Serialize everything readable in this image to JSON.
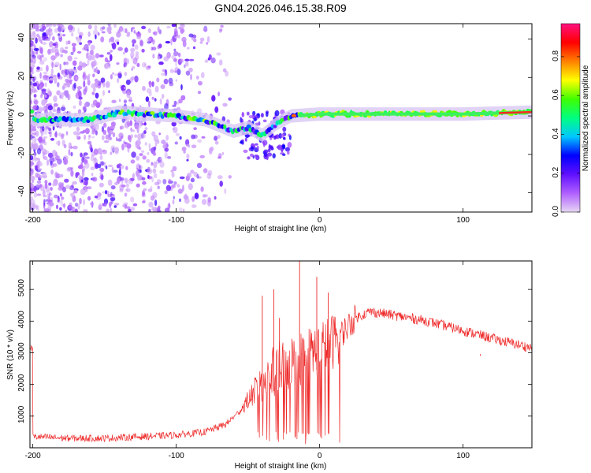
{
  "title": "GN04.2026.046.15.38.R09",
  "chart_data": [
    {
      "type": "heatmap",
      "name": "spectrogram",
      "xlabel": "Height of straight line (km)",
      "ylabel": "Frequency (Hz)",
      "xlim": [
        -202,
        148
      ],
      "ylim": [
        -50,
        48
      ],
      "xticks": [
        -200,
        -100,
        0,
        100
      ],
      "yticks": [
        -40,
        -20,
        0,
        20,
        40
      ],
      "colorbar": {
        "label": "Normalized spectral amplitude",
        "range": [
          0,
          0.97
        ],
        "ticks": [
          0.0,
          0.2,
          0.4,
          0.6,
          0.8
        ],
        "tick_labels": [
          "0.0",
          "0.2",
          "0.4",
          "0.6",
          "0.8"
        ],
        "colormap": [
          "#e6d6f3",
          "#b060ff",
          "#6010ff",
          "#0000ff",
          "#00c8ff",
          "#00ff80",
          "#40ff00",
          "#ffff00",
          "#ff8000",
          "#ff0000",
          "#ff1080"
        ]
      },
      "ridge": [
        {
          "x": -200,
          "y": -2
        },
        {
          "x": -180,
          "y": -2
        },
        {
          "x": -160,
          "y": -2
        },
        {
          "x": -140,
          "y": 2
        },
        {
          "x": -120,
          "y": 1
        },
        {
          "x": -100,
          "y": 0
        },
        {
          "x": -80,
          "y": -2
        },
        {
          "x": -60,
          "y": -8
        },
        {
          "x": -50,
          "y": -6
        },
        {
          "x": -40,
          "y": -10
        },
        {
          "x": -30,
          "y": -4
        },
        {
          "x": -20,
          "y": 0
        },
        {
          "x": 0,
          "y": 1
        },
        {
          "x": 50,
          "y": 1
        },
        {
          "x": 100,
          "y": 1
        },
        {
          "x": 148,
          "y": 2
        }
      ]
    },
    {
      "type": "line",
      "name": "snr",
      "xlabel": "Height of straight line (km)",
      "ylabel": "SNR (10 * v/v)",
      "xlim": [
        -202,
        148
      ],
      "ylim": [
        0,
        5900
      ],
      "xticks": [
        -200,
        -100,
        0,
        100
      ],
      "yticks": [
        1000,
        2000,
        3000,
        4000,
        5000
      ],
      "color": "#ee2a2a",
      "envelope": [
        {
          "x": -200,
          "y": 350
        },
        {
          "x": -175,
          "y": 300
        },
        {
          "x": -150,
          "y": 300
        },
        {
          "x": -125,
          "y": 350
        },
        {
          "x": -100,
          "y": 400
        },
        {
          "x": -80,
          "y": 500
        },
        {
          "x": -65,
          "y": 750
        },
        {
          "x": -55,
          "y": 1200
        },
        {
          "x": -45,
          "y": 1800
        },
        {
          "x": -35,
          "y": 2300
        },
        {
          "x": -25,
          "y": 2600
        },
        {
          "x": -15,
          "y": 2800
        },
        {
          "x": -5,
          "y": 3000
        },
        {
          "x": 5,
          "y": 3200
        },
        {
          "x": 15,
          "y": 3600
        },
        {
          "x": 25,
          "y": 4100
        },
        {
          "x": 35,
          "y": 4300
        },
        {
          "x": 50,
          "y": 4200
        },
        {
          "x": 75,
          "y": 4000
        },
        {
          "x": 100,
          "y": 3700
        },
        {
          "x": 125,
          "y": 3400
        },
        {
          "x": 148,
          "y": 3150
        }
      ],
      "spikes": [
        {
          "x": -40,
          "y": 4800
        },
        {
          "x": -32,
          "y": 5000
        },
        {
          "x": -28,
          "y": 4100
        },
        {
          "x": -14,
          "y": 5900
        },
        {
          "x": -2,
          "y": 5400
        },
        {
          "x": 6,
          "y": 4900
        },
        {
          "x": 112,
          "y": 2900
        }
      ]
    }
  ]
}
